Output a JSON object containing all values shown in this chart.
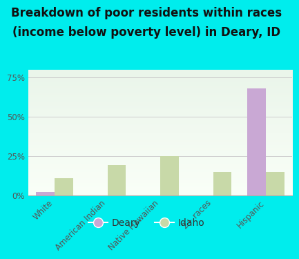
{
  "title_line1": "Breakdown of poor residents within races",
  "title_line2": "(income below poverty level) in Deary, ID",
  "categories": [
    "White",
    "American Indian",
    "Native Hawaiian",
    "2+ races",
    "Hispanic"
  ],
  "deary_values": [
    2.0,
    0.0,
    0.0,
    0.0,
    68.0
  ],
  "idaho_values": [
    11.0,
    19.0,
    25.0,
    15.0,
    15.0
  ],
  "deary_color": "#c9a8d4",
  "idaho_color": "#c8d9a8",
  "background_color": "#00eded",
  "plot_bg_top": "#eaf5ea",
  "plot_bg_bottom": "#fafff8",
  "yticks": [
    0,
    25,
    50,
    75
  ],
  "ylim": [
    0,
    80
  ],
  "bar_width": 0.35,
  "title_fontsize": 12,
  "tick_label_fontsize": 8.5,
  "legend_fontsize": 10
}
